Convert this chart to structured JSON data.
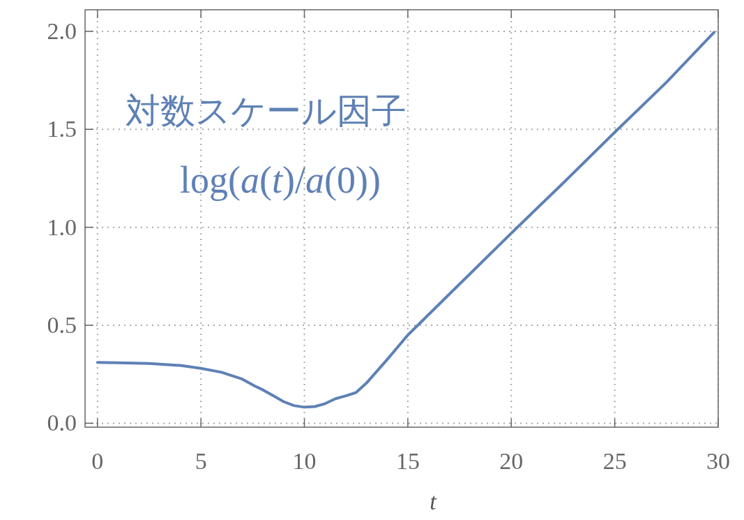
{
  "chart_data": {
    "type": "line",
    "xlabel": "*t*",
    "annotations": [
      "対数スケール因子",
      "log(*a*(*t*)/*a*(0))"
    ],
    "x": [
      0,
      1,
      2.5,
      4,
      5,
      6,
      7,
      7.6,
      8,
      8.5,
      9,
      9.5,
      10,
      10.5,
      11,
      11.5,
      12,
      12.5,
      13,
      14,
      15,
      17.5,
      20,
      22.5,
      25,
      27.5,
      29.8
    ],
    "series": [
      {
        "color": "#5e81b5",
        "values": [
          0.31,
          0.309,
          0.305,
          0.295,
          0.28,
          0.26,
          0.225,
          0.19,
          0.17,
          0.14,
          0.11,
          0.09,
          0.082,
          0.085,
          0.1,
          0.125,
          0.14,
          0.157,
          0.205,
          0.325,
          0.45,
          0.71,
          0.97,
          1.225,
          1.485,
          1.74,
          1.995
        ]
      }
    ],
    "xlim": [
      -0.6,
      30
    ],
    "ylim": [
      -0.02,
      2.11
    ],
    "xticks": [
      0,
      5,
      10,
      15,
      20,
      25,
      30
    ],
    "yticks": [
      {
        "value": 0,
        "label": "0.0"
      },
      0.5,
      {
        "value": 1,
        "label": "1.0"
      },
      1.5,
      {
        "value": 2,
        "label": "2.0"
      }
    ],
    "grid": true,
    "marker": "none",
    "line_style": "solid"
  }
}
